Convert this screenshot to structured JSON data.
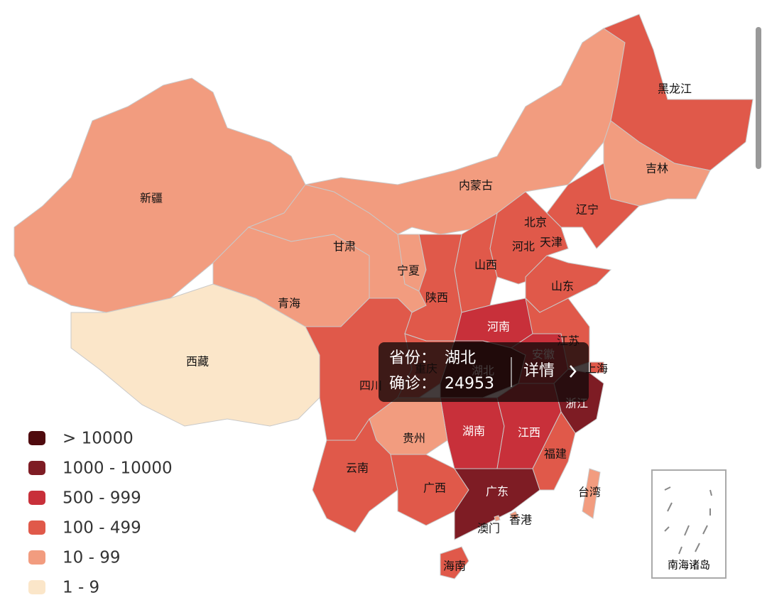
{
  "provinces": [
    {
      "name": "新疆",
      "color": "#f29c7f"
    },
    {
      "name": "西藏",
      "color": "#fbe6c9"
    },
    {
      "name": "青海",
      "color": "#f29c7f"
    },
    {
      "name": "甘肃",
      "color": "#f29c7f"
    },
    {
      "name": "内蒙古",
      "color": "#f29c7f"
    },
    {
      "name": "黑龙江",
      "color": "#e0594a"
    },
    {
      "name": "吉林",
      "color": "#f29c7f"
    },
    {
      "name": "辽宁",
      "color": "#e0594a"
    },
    {
      "name": "北京",
      "color": "#e0594a"
    },
    {
      "name": "天津",
      "color": "#f29c7f"
    },
    {
      "name": "河北",
      "color": "#e0594a"
    },
    {
      "name": "山西",
      "color": "#e0594a"
    },
    {
      "name": "山东",
      "color": "#e0594a"
    },
    {
      "name": "宁夏",
      "color": "#f29c7f"
    },
    {
      "name": "陕西",
      "color": "#e0594a"
    },
    {
      "name": "河南",
      "color": "#c8303a"
    },
    {
      "name": "四川",
      "color": "#e0594a"
    },
    {
      "name": "重庆",
      "color": "#e0594a"
    },
    {
      "name": "湖北",
      "color": "#4f0a0e"
    },
    {
      "name": "安徽",
      "color": "#c8303a"
    },
    {
      "name": "江苏",
      "color": "#e0594a"
    },
    {
      "name": "上海",
      "color": "#e0594a"
    },
    {
      "name": "浙江",
      "color": "#7e1c24"
    },
    {
      "name": "湖南",
      "color": "#c8303a"
    },
    {
      "name": "江西",
      "color": "#c8303a"
    },
    {
      "name": "福建",
      "color": "#e0594a"
    },
    {
      "name": "贵州",
      "color": "#f29c7f"
    },
    {
      "name": "云南",
      "color": "#e0594a"
    },
    {
      "name": "广西",
      "color": "#e0594a"
    },
    {
      "name": "广东",
      "color": "#7e1c24"
    },
    {
      "name": "海南",
      "color": "#e0594a"
    },
    {
      "name": "台湾",
      "color": "#f29c7f"
    },
    {
      "name": "香港",
      "color": "#f29c7f"
    },
    {
      "name": "澳门",
      "color": "#f29c7f"
    }
  ],
  "legend": [
    {
      "label": "> 10000",
      "color": "#4f0a0e"
    },
    {
      "label": "1000 - 10000",
      "color": "#7e1c24"
    },
    {
      "label": "500 - 999",
      "color": "#c8303a"
    },
    {
      "label": "100 - 499",
      "color": "#e0594a"
    },
    {
      "label": "10 - 99",
      "color": "#f29c7f"
    },
    {
      "label": "1 - 9",
      "color": "#fbe6c9"
    }
  ],
  "tooltip": {
    "province_label": "省份：",
    "province": "湖北",
    "confirmed_label": "确诊：",
    "confirmed": "24953",
    "link": "详情"
  },
  "inset": {
    "label": "南海诸岛"
  }
}
